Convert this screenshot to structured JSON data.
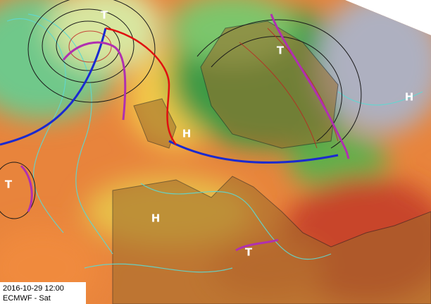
{
  "map": {
    "pressure_labels": [
      "T",
      "T",
      "H",
      "H",
      "T",
      "H",
      "T"
    ],
    "timestamp": "2016-10-29 12:00",
    "source": "ECMWF - Sat"
  }
}
